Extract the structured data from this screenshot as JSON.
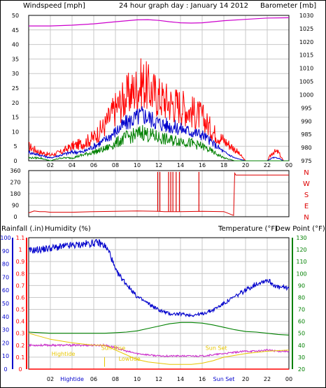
{
  "colors": {
    "frame": "#000000",
    "grid": "#c8c8c8",
    "wind_gust": "#ff0000",
    "wind_avg": "#0000cc",
    "wind_low": "#008000",
    "baro": "#cc00cc",
    "direction": "#dd0000",
    "rain": "#ff0000",
    "humidity": "#0000cc",
    "temperature": "#008000",
    "dewpoint": "#cc33cc",
    "tide": "#e6c600",
    "title": "#0000cc"
  },
  "header": {
    "left": "Windspeed [mph]",
    "center": "24 hour graph day : January 14 2012",
    "right": "Barometer [mb]"
  },
  "bottom_header": {
    "rain": "Rainfall (.in)",
    "humidity": "Humidity (%)",
    "temperature": "Temperature (°F)",
    "dewpoint": "Dew Point (°F)"
  },
  "x_ticks": [
    "02",
    "04",
    "06",
    "08",
    "10",
    "12",
    "14",
    "16",
    "18",
    "20",
    "22",
    "00"
  ],
  "bottom_x_ticks": [
    "02",
    "Hightide",
    "06",
    "08",
    "10",
    "12",
    "14",
    "16",
    "Sun Set",
    "20",
    "22",
    "00"
  ],
  "events": {
    "hightide": "Hightide",
    "sunrise": "Sun Rise",
    "lowtide": "Lowtide",
    "sunset": "Sun Set"
  },
  "chart_data": [
    {
      "type": "line",
      "title": "24 hour graph day : January 14 2012",
      "x_unit": "hour",
      "xlim": [
        0,
        24
      ],
      "left_axis": {
        "label": "Windspeed [mph]",
        "ylim": [
          0,
          50
        ],
        "ticks": [
          0,
          5,
          10,
          15,
          20,
          25,
          30,
          35,
          40,
          45,
          50
        ]
      },
      "right_axis": {
        "label": "Barometer [mb]",
        "ylim": [
          975,
          1030
        ],
        "ticks": [
          975,
          980,
          985,
          990,
          995,
          1000,
          1005,
          1010,
          1015,
          1020,
          1025,
          1030
        ]
      },
      "series": [
        {
          "name": "gust",
          "axis": "left",
          "x": [
            0,
            1,
            2,
            3,
            4,
            5,
            6,
            7,
            8,
            9,
            10,
            10.5,
            11,
            12,
            13,
            14,
            15,
            16,
            17,
            18,
            19,
            20,
            21,
            22,
            22.5,
            23,
            23.5,
            24
          ],
          "y": [
            5,
            3,
            2,
            3,
            5,
            6,
            8,
            12,
            18,
            22,
            25,
            27,
            25,
            22,
            20,
            19,
            17,
            15,
            10,
            7,
            4,
            0,
            0,
            0,
            3,
            3,
            0,
            0
          ]
        },
        {
          "name": "average",
          "axis": "left",
          "x": [
            0,
            1,
            2,
            3,
            4,
            5,
            6,
            7,
            8,
            9,
            10,
            10.5,
            11,
            12,
            13,
            14,
            15,
            16,
            17,
            18,
            19,
            20,
            21,
            22,
            22.5,
            23,
            23.5,
            24
          ],
          "y": [
            3,
            2,
            1,
            2,
            3,
            3,
            5,
            7,
            10,
            13,
            15,
            16,
            15,
            13,
            12,
            11,
            10,
            9,
            6,
            3,
            1,
            0,
            0,
            0,
            1,
            1,
            0,
            0
          ]
        },
        {
          "name": "low",
          "axis": "left",
          "x": [
            0,
            1,
            2,
            3,
            4,
            5,
            6,
            7,
            8,
            9,
            10,
            10.5,
            11,
            12,
            13,
            14,
            15,
            16,
            17,
            18,
            19,
            20,
            21,
            22,
            22.5,
            23,
            23.5,
            24
          ],
          "y": [
            1,
            1,
            0,
            1,
            1,
            2,
            3,
            4,
            6,
            8,
            9,
            10,
            9,
            8,
            7,
            7,
            6,
            5,
            3,
            1,
            0,
            0,
            0,
            0,
            0,
            0,
            0,
            0
          ]
        },
        {
          "name": "barometer",
          "axis": "right",
          "x": [
            0,
            2,
            4,
            6,
            8,
            10,
            11,
            12,
            13,
            14,
            15,
            16,
            17,
            18,
            20,
            22,
            24
          ],
          "y": [
            1026,
            1026,
            1026.3,
            1026.8,
            1027.6,
            1028.3,
            1028.4,
            1028.1,
            1027.6,
            1027.2,
            1027.1,
            1027.2,
            1027.6,
            1028,
            1028.5,
            1029,
            1029.1
          ]
        }
      ]
    },
    {
      "type": "line",
      "x_unit": "hour",
      "xlim": [
        0,
        24
      ],
      "ylim": [
        0,
        360
      ],
      "y_ticks": [
        0,
        90,
        180,
        270,
        360
      ],
      "compass": [
        "N",
        "W",
        "S",
        "E",
        "N"
      ],
      "series": [
        {
          "name": "direction",
          "x": [
            0,
            0.5,
            1,
            1.5,
            2,
            4,
            6,
            8,
            10,
            12,
            12.5,
            14,
            16,
            18,
            18.9,
            19,
            19.1,
            24
          ],
          "y": [
            30,
            45,
            40,
            40,
            35,
            35,
            40,
            42,
            45,
            42,
            40,
            40,
            42,
            40,
            10,
            340,
            325,
            325
          ]
        }
      ],
      "spikes_x": [
        11.9,
        12.1,
        12.9,
        13.1,
        13.3,
        13.6,
        13.9,
        15.7
      ]
    },
    {
      "type": "line",
      "x_unit": "hour",
      "xlim": [
        0,
        24
      ],
      "left_axes": [
        {
          "label": "Rainfall (.in)",
          "ylim": [
            0,
            1.1
          ],
          "ticks": [
            0,
            0.1,
            0.2,
            0.3,
            0.4,
            0.5,
            0.6,
            0.7,
            0.8,
            0.9,
            1,
            1.1
          ]
        },
        {
          "label": "Humidity (%)",
          "ylim": [
            0,
            100
          ],
          "ticks": [
            0,
            10,
            20,
            30,
            40,
            50,
            60,
            70,
            80,
            90,
            100
          ]
        }
      ],
      "right_axis": {
        "label": "Temperature (°F)",
        "ylim": [
          20,
          130
        ],
        "ticks": [
          20,
          30,
          40,
          50,
          60,
          70,
          80,
          90,
          100,
          110,
          120,
          130
        ]
      },
      "series": [
        {
          "name": "humidity",
          "axis": "humidity",
          "x": [
            0,
            1,
            2,
            3,
            4,
            5,
            6,
            6.5,
            7,
            7.5,
            8,
            9,
            10,
            11,
            12,
            13,
            14,
            15,
            16,
            17,
            18,
            19,
            20,
            21,
            22,
            23,
            24
          ],
          "y": [
            90,
            91,
            92,
            93,
            94,
            95,
            96,
            96,
            94,
            88,
            75,
            65,
            55,
            50,
            45,
            42,
            42,
            41,
            42,
            45,
            50,
            55,
            60,
            65,
            68,
            62,
            62
          ]
        },
        {
          "name": "temperature",
          "axis": "right",
          "x": [
            0,
            2,
            4,
            6,
            7,
            8,
            9,
            10,
            11,
            12,
            13,
            14,
            15,
            16,
            17,
            18,
            19,
            20,
            21,
            22,
            23,
            24
          ],
          "y": [
            51,
            50,
            50,
            50,
            50,
            50.5,
            51,
            52,
            54,
            56,
            58,
            59,
            59,
            58.5,
            57,
            55,
            53,
            51.5,
            51,
            50,
            49,
            48.5
          ]
        },
        {
          "name": "dewpoint",
          "axis": "right",
          "x": [
            0,
            1,
            2,
            4,
            5,
            6,
            7,
            8,
            9,
            10,
            11,
            12,
            13,
            14,
            15,
            16,
            17,
            18,
            19,
            20,
            21,
            22,
            23,
            24
          ],
          "y": [
            40,
            40,
            40,
            40,
            40,
            40,
            40,
            38,
            35,
            33,
            32,
            31,
            31,
            31,
            31,
            31,
            32,
            33,
            34,
            35,
            35,
            36,
            35,
            35
          ]
        },
        {
          "name": "rainfall",
          "axis": "rain",
          "x": [
            0,
            24
          ],
          "y": [
            0,
            0
          ]
        }
      ],
      "tide": {
        "x": [
          0,
          2,
          4,
          6,
          7,
          8,
          9,
          10,
          11,
          12,
          13,
          14,
          15,
          16,
          17,
          18,
          20,
          22,
          24
        ],
        "y": [
          0.3,
          0.25,
          0.22,
          0.2,
          0.2,
          0.16,
          0.12,
          0.08,
          0.06,
          0.05,
          0.04,
          0.04,
          0.04,
          0.05,
          0.07,
          0.1,
          0.13,
          0.15,
          0.16
        ]
      }
    }
  ]
}
